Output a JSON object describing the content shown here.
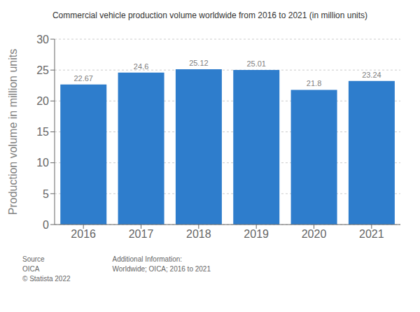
{
  "chart_data": {
    "type": "bar",
    "title": "Commercial vehicle production volume worldwide from 2016 to 2021 (in million units)",
    "categories": [
      "2016",
      "2017",
      "2018",
      "2019",
      "2020",
      "2021"
    ],
    "values": [
      22.67,
      24.6,
      25.12,
      25.01,
      21.8,
      23.24
    ],
    "color": "#2e7dcc",
    "ylabel": "Production volume in million units",
    "ylim": [
      0,
      30
    ],
    "yticks": [
      0,
      5,
      10,
      15,
      20,
      25,
      30
    ],
    "grid": true,
    "data_labels": true,
    "annotations": [
      "Source\nOICA\n© Statista 2022",
      "Additional Information:\nWorldwide; OICA; 2016 to 2021"
    ]
  }
}
